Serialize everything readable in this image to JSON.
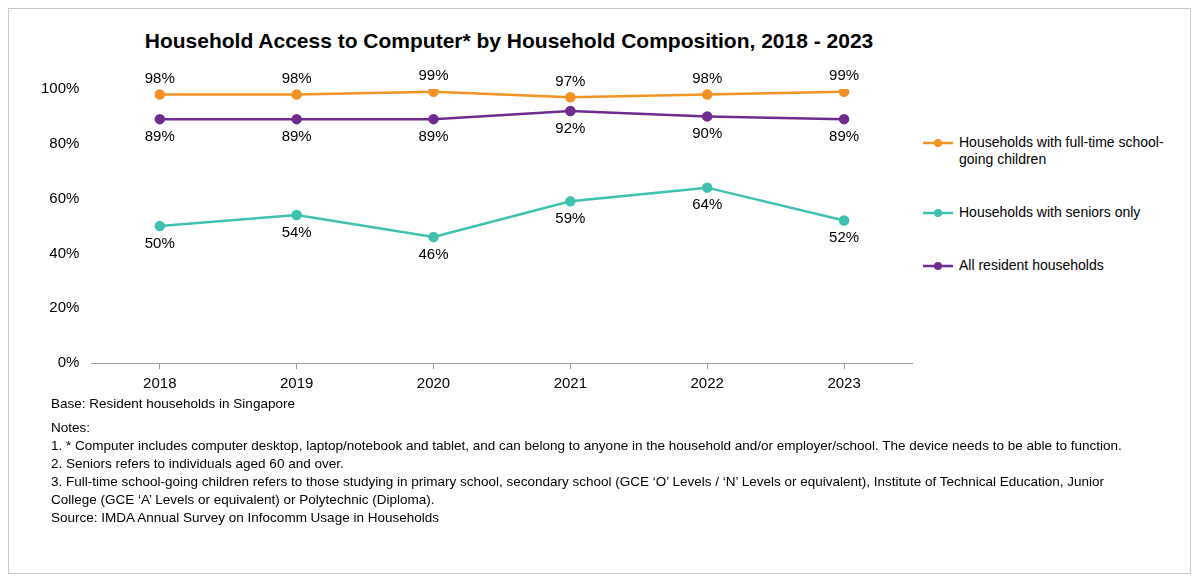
{
  "chart_data": {
    "type": "line",
    "title": "Household Access to Computer* by Household Composition, 2018 - 2023",
    "categories": [
      "2018",
      "2019",
      "2020",
      "2021",
      "2022",
      "2023"
    ],
    "series": [
      {
        "name": "Households with full-time school-going children",
        "color": "#f39325",
        "marker": "circle",
        "values": [
          98,
          98,
          99,
          97,
          98,
          99
        ],
        "value_labels": [
          "98%",
          "98%",
          "99%",
          "97%",
          "98%",
          "99%"
        ]
      },
      {
        "name": "Households with seniors only",
        "color": "#3fc1af",
        "marker": "circle",
        "values": [
          50,
          54,
          46,
          59,
          64,
          52
        ],
        "value_labels": [
          "50%",
          "54%",
          "46%",
          "59%",
          "64%",
          "52%"
        ]
      },
      {
        "name": "All resident households",
        "color": "#6f2b8f",
        "marker": "circle",
        "values": [
          89,
          89,
          89,
          92,
          90,
          89
        ],
        "value_labels": [
          "89%",
          "89%",
          "89%",
          "92%",
          "90%",
          "89%"
        ]
      }
    ],
    "ylim": [
      0,
      100
    ],
    "yticks": [
      {
        "value": 0,
        "label": "0%"
      },
      {
        "value": 20,
        "label": "20%"
      },
      {
        "value": 40,
        "label": "40%"
      },
      {
        "value": 60,
        "label": "60%"
      },
      {
        "value": 80,
        "label": "80%"
      },
      {
        "value": 100,
        "label": "100%"
      }
    ],
    "grid": false,
    "legend": "right",
    "data_labels": true,
    "annotations": [
      "Base: Resident households in Singapore",
      "Notes:",
      "1. * Computer includes computer desktop, laptop/notebook and tablet, and can belong to anyone in the household and/or employer/school. The device needs to be able to function.",
      "2. Seniors refers to individuals aged 60 and over.",
      "3. Full-time school-going children refers to those studying in primary school, secondary school (GCE ‘O’ Levels / ‘N’ Levels or equivalent), Institute of Technical Education, Junior College (GCE ‘A’ Levels or equivalent) or Polytechnic (Diploma).",
      "Source: IMDA Annual Survey on Infocomm Usage in Households"
    ]
  }
}
